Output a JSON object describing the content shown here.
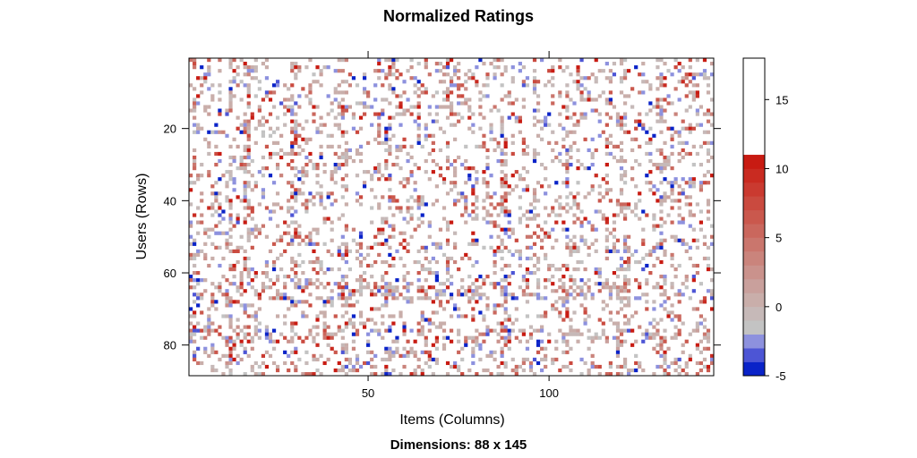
{
  "chart_data": {
    "type": "heatmap",
    "title": "Normalized Ratings",
    "subtitle": "Dimensions: 88 x 145",
    "xlabel": "Items (Columns)",
    "ylabel": "Users (Rows)",
    "n_rows": 88,
    "n_cols": 145,
    "xlim": [
      0.5,
      145.5
    ],
    "ylim": [
      0.5,
      88.5
    ],
    "y_reversed": true,
    "x_ticks": [
      50,
      100
    ],
    "y_ticks": [
      20,
      40,
      60,
      80
    ],
    "fill_density": 0.22,
    "dense_rows": [
      63,
      64,
      65,
      66,
      67,
      76,
      77,
      78,
      79
    ],
    "dense_cols": [
      2,
      3,
      12,
      16,
      17,
      29,
      30,
      43,
      44,
      55,
      56,
      87,
      88,
      104,
      105,
      120,
      121,
      131,
      132
    ],
    "colorkey": {
      "at": [
        -5,
        -4,
        -3,
        -2,
        -1,
        0,
        1,
        2,
        3,
        4,
        5,
        6,
        7,
        8,
        9,
        10,
        11,
        12,
        13,
        14,
        15,
        16,
        17,
        18
      ],
      "ticks": [
        -5,
        0,
        5,
        10,
        15
      ],
      "colors": [
        "#0a23c8",
        "#4d55d5",
        "#8d91de",
        "#c3c3c3",
        "#c6b9b8",
        "#c9aeaa",
        "#c9a09c",
        "#ca928c",
        "#ca847c",
        "#ca766d",
        "#ca675d",
        "#ca584d",
        "#ca4a3f",
        "#ca3a30",
        "#c92b21",
        "#c81b12"
      ]
    },
    "legend_position": "right",
    "grid": false
  }
}
